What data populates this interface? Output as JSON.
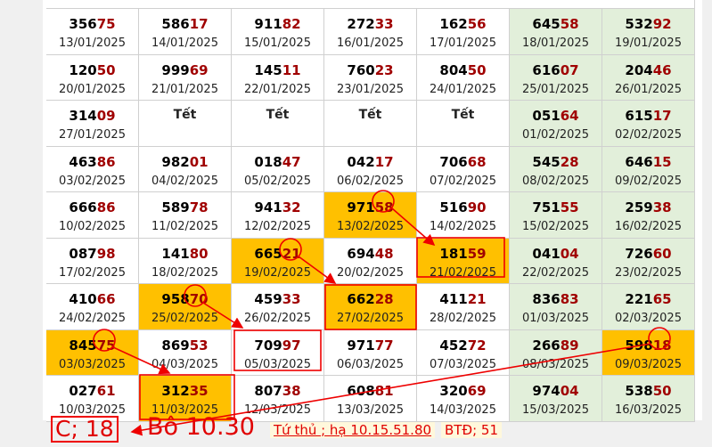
{
  "table": {
    "rows": [
      [
        {
          "head": "356",
          "tail": "75",
          "date": "13/01/2025"
        },
        {
          "head": "586",
          "tail": "17",
          "date": "14/01/2025"
        },
        {
          "head": "911",
          "tail": "82",
          "date": "15/01/2025"
        },
        {
          "head": "272",
          "tail": "33",
          "date": "16/01/2025"
        },
        {
          "head": "162",
          "tail": "56",
          "date": "17/01/2025"
        },
        {
          "head": "645",
          "tail": "58",
          "date": "18/01/2025"
        },
        {
          "head": "532",
          "tail": "92",
          "date": "19/01/2025"
        }
      ],
      [
        {
          "head": "120",
          "tail": "50",
          "date": "20/01/2025"
        },
        {
          "head": "999",
          "tail": "69",
          "date": "21/01/2025"
        },
        {
          "head": "145",
          "tail": "11",
          "date": "22/01/2025"
        },
        {
          "head": "760",
          "tail": "23",
          "date": "23/01/2025"
        },
        {
          "head": "804",
          "tail": "50",
          "date": "24/01/2025"
        },
        {
          "head": "616",
          "tail": "07",
          "date": "25/01/2025"
        },
        {
          "head": "204",
          "tail": "46",
          "date": "26/01/2025"
        }
      ],
      [
        {
          "head": "314",
          "tail": "09",
          "date": "27/01/2025"
        },
        {
          "label": "Tết"
        },
        {
          "label": "Tết"
        },
        {
          "label": "Tết"
        },
        {
          "label": "Tết"
        },
        {
          "head": "051",
          "tail": "64",
          "date": "01/02/2025"
        },
        {
          "head": "615",
          "tail": "17",
          "date": "02/02/2025"
        }
      ],
      [
        {
          "head": "463",
          "tail": "86",
          "date": "03/02/2025"
        },
        {
          "head": "982",
          "tail": "01",
          "date": "04/02/2025"
        },
        {
          "head": "018",
          "tail": "47",
          "date": "05/02/2025"
        },
        {
          "head": "042",
          "tail": "17",
          "date": "06/02/2025"
        },
        {
          "head": "706",
          "tail": "68",
          "date": "07/02/2025"
        },
        {
          "head": "545",
          "tail": "28",
          "date": "08/02/2025"
        },
        {
          "head": "646",
          "tail": "15",
          "date": "09/02/2025"
        }
      ],
      [
        {
          "head": "666",
          "tail": "86",
          "date": "10/02/2025"
        },
        {
          "head": "589",
          "tail": "78",
          "date": "11/02/2025"
        },
        {
          "head": "941",
          "tail": "32",
          "date": "12/02/2025"
        },
        {
          "head": "971",
          "tail": "58",
          "date": "13/02/2025",
          "highlight": true
        },
        {
          "head": "516",
          "tail": "90",
          "date": "14/02/2025"
        },
        {
          "head": "751",
          "tail": "55",
          "date": "15/02/2025"
        },
        {
          "head": "259",
          "tail": "38",
          "date": "16/02/2025"
        }
      ],
      [
        {
          "head": "087",
          "tail": "98",
          "date": "17/02/2025"
        },
        {
          "head": "141",
          "tail": "80",
          "date": "18/02/2025"
        },
        {
          "head": "665",
          "tail": "21",
          "date": "19/02/2025",
          "highlight": true
        },
        {
          "head": "694",
          "tail": "48",
          "date": "20/02/2025"
        },
        {
          "head": "181",
          "tail": "59",
          "date": "21/02/2025",
          "highlight": true
        },
        {
          "head": "041",
          "tail": "04",
          "date": "22/02/2025"
        },
        {
          "head": "726",
          "tail": "60",
          "date": "23/02/2025"
        }
      ],
      [
        {
          "head": "410",
          "tail": "66",
          "date": "24/02/2025"
        },
        {
          "head": "958",
          "tail": "70",
          "date": "25/02/2025",
          "highlight": true
        },
        {
          "head": "459",
          "tail": "33",
          "date": "26/02/2025"
        },
        {
          "head": "662",
          "tail": "28",
          "date": "27/02/2025",
          "highlight": true
        },
        {
          "head": "411",
          "tail": "21",
          "date": "28/02/2025"
        },
        {
          "head": "836",
          "tail": "83",
          "date": "01/03/2025"
        },
        {
          "head": "221",
          "tail": "65",
          "date": "02/03/2025"
        }
      ],
      [
        {
          "head": "845",
          "tail": "75",
          "date": "03/03/2025",
          "highlight": true
        },
        {
          "head": "869",
          "tail": "53",
          "date": "04/03/2025"
        },
        {
          "head": "709",
          "tail": "97",
          "date": "05/03/2025"
        },
        {
          "head": "971",
          "tail": "77",
          "date": "06/03/2025"
        },
        {
          "head": "452",
          "tail": "72",
          "date": "07/03/2025"
        },
        {
          "head": "266",
          "tail": "89",
          "date": "08/03/2025"
        },
        {
          "head": "598",
          "tail": "18",
          "date": "09/03/2025",
          "highlight": true
        }
      ],
      [
        {
          "head": "027",
          "tail": "61",
          "date": "10/03/2025"
        },
        {
          "head": "312",
          "tail": "35",
          "date": "11/03/2025",
          "highlight": true
        },
        {
          "head": "807",
          "tail": "38",
          "date": "12/03/2025"
        },
        {
          "head": "608",
          "tail": "81",
          "date": "13/03/2025"
        },
        {
          "head": "320",
          "tail": "69",
          "date": "14/03/2025"
        },
        {
          "head": "974",
          "tail": "04",
          "date": "15/03/2025"
        },
        {
          "head": "538",
          "tail": "50",
          "date": "16/03/2025"
        }
      ]
    ]
  },
  "footer": {
    "items": [
      "C; 18",
      "Bô 10.30",
      "Tứ thủ ; hạ 10.15.51.80",
      "BTĐ; 51"
    ]
  }
}
